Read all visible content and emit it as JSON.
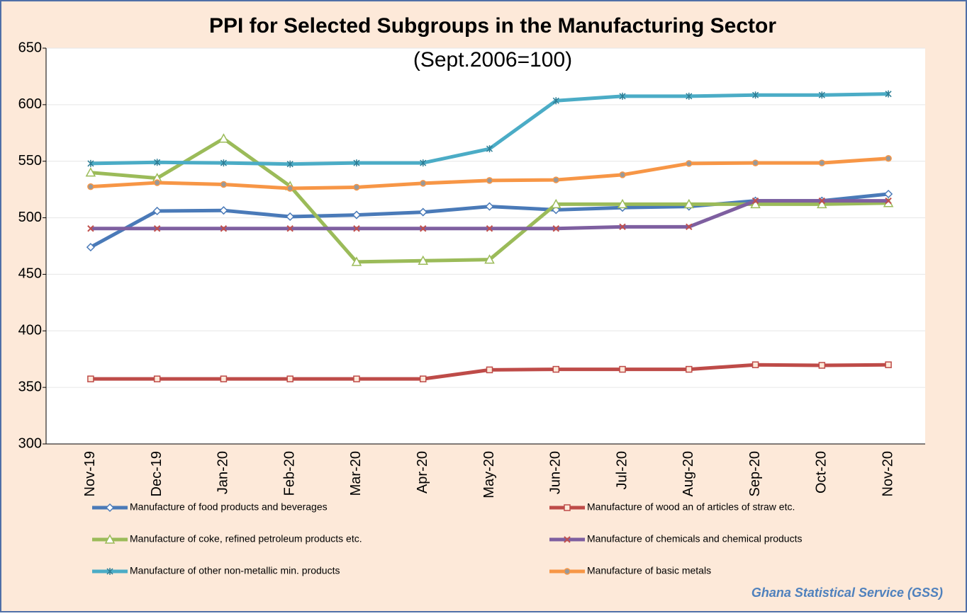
{
  "chart_data": {
    "type": "line",
    "title": "PPI for Selected Subgroups in the Manufacturing Sector",
    "subtitle": "(Sept.2006=100)",
    "source": "Ghana Statistical Service (GSS)",
    "categories": [
      "Nov-19",
      "Dec-19",
      "Jan-20",
      "Feb-20",
      "Mar-20",
      "Apr-20",
      "May-20",
      "Jun-20",
      "Jul-20",
      "Aug-20",
      "Sep-20",
      "Oct-20",
      "Nov-20"
    ],
    "ylim": [
      300,
      650
    ],
    "yticks": [
      300,
      350,
      400,
      450,
      500,
      550,
      600,
      650
    ],
    "grid": true,
    "series": [
      {
        "name": "Manufacture of food products and beverages",
        "color": "#4a7ab8",
        "marker": "diamond",
        "values": [
          474,
          506,
          506.5,
          501,
          502.5,
          505,
          510,
          507,
          509,
          510,
          515,
          515,
          521
        ]
      },
      {
        "name": "Manufacture of wood an of articles of straw etc.",
        "color": "#be4b48",
        "marker": "square",
        "values": [
          357.5,
          357.5,
          357.5,
          357.5,
          357.5,
          357.5,
          365.5,
          366,
          366,
          366,
          370,
          369.5,
          370
        ]
      },
      {
        "name": "Manufacture of coke, refined petroleum products etc.",
        "color": "#9bbb59",
        "marker": "triangle",
        "values": [
          540,
          535,
          570,
          528,
          461,
          462,
          463,
          512,
          512,
          512,
          512,
          512,
          513
        ]
      },
      {
        "name": "Manufacture of chemicals and chemical products",
        "color": "#7e5fa0",
        "marker": "x",
        "values": [
          490.5,
          490.5,
          490.5,
          490.5,
          490.5,
          490.5,
          490.5,
          490.5,
          492,
          492,
          515,
          515,
          515
        ]
      },
      {
        "name": "Manufacture of other non-metallic min. products",
        "color": "#4bacc6",
        "marker": "star",
        "values": [
          548,
          549,
          548.5,
          547.5,
          548.5,
          548.5,
          561,
          603.5,
          607.5,
          607.5,
          608.5,
          608.5,
          609.5
        ]
      },
      {
        "name": "Manufacture of basic metals",
        "color": "#f79646",
        "marker": "circle",
        "values": [
          527.5,
          531,
          529.5,
          526,
          527,
          530.5,
          533,
          533.5,
          538,
          548,
          548.5,
          548.5,
          552.5
        ]
      }
    ]
  }
}
